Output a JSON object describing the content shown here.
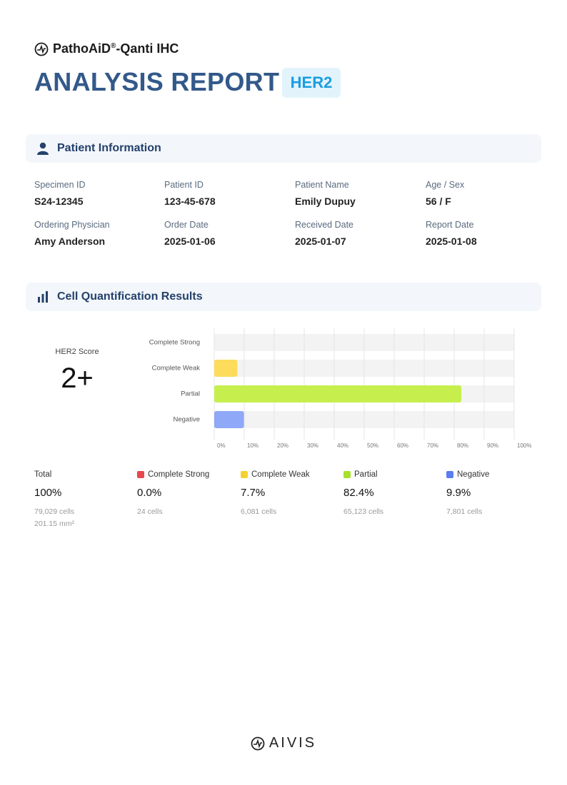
{
  "header": {
    "brand": "PathoAiD",
    "brand_mark": "®",
    "brand_suffix": "-Qanti IHC",
    "title": "ANALYSIS REPORT",
    "badge": "HER2"
  },
  "patient": {
    "heading": "Patient Information",
    "fields": [
      {
        "label": "Specimen ID",
        "value": "S24-12345"
      },
      {
        "label": "Patient ID",
        "value": "123-45-678"
      },
      {
        "label": "Patient Name",
        "value": "Emily Dupuy"
      },
      {
        "label": "Age / Sex",
        "value": "56 / F"
      },
      {
        "label": "Ordering Physician",
        "value": "Amy Anderson"
      },
      {
        "label": "Order Date",
        "value": "2025-01-06"
      },
      {
        "label": "Received Date",
        "value": "2025-01-07"
      },
      {
        "label": "Report Date",
        "value": "2025-01-08"
      }
    ]
  },
  "results": {
    "heading": "Cell Quantification Results",
    "score_label": "HER2 Score",
    "score": "2+",
    "summary": [
      {
        "label": "Total",
        "percent": "100%",
        "cells": "79,029 cells",
        "area": "201.15 mm²"
      },
      {
        "label": "Complete Strong",
        "color": "#e5484d",
        "percent": "0.0%",
        "cells": "24 cells"
      },
      {
        "label": "Complete Weak",
        "color": "#f5d130",
        "percent": "7.7%",
        "cells": "6,081 cells"
      },
      {
        "label": "Partial",
        "color": "#a8e02e",
        "percent": "82.4%",
        "cells": "65,123 cells"
      },
      {
        "label": "Negative",
        "color": "#5b7cf0",
        "percent": "9.9%",
        "cells": "7,801 cells"
      }
    ]
  },
  "chart_data": {
    "type": "bar",
    "orientation": "horizontal",
    "categories": [
      "Complete Strong",
      "Complete Weak",
      "Partial",
      "Negative"
    ],
    "values": [
      0.0,
      7.7,
      82.4,
      9.9
    ],
    "colors": [
      "#f26b6b",
      "#fddc5c",
      "#c6ef4e",
      "#8fa8f7"
    ],
    "xlim": [
      0,
      100
    ],
    "xticks": [
      {
        "value": 0,
        "label": "0%"
      },
      {
        "value": 10,
        "label": "10%"
      },
      {
        "value": 20,
        "label": "20%"
      },
      {
        "value": 30,
        "label": "30%"
      },
      {
        "value": 40,
        "label": "40%"
      },
      {
        "value": 50,
        "label": "50%"
      },
      {
        "value": 60,
        "label": "60%"
      },
      {
        "value": 70,
        "label": "70%"
      },
      {
        "value": 80,
        "label": "80%"
      },
      {
        "value": 90,
        "label": "90%"
      },
      {
        "value": 100,
        "label": "100%"
      }
    ],
    "grid": true
  },
  "footer": {
    "logo": "AIVIS"
  }
}
